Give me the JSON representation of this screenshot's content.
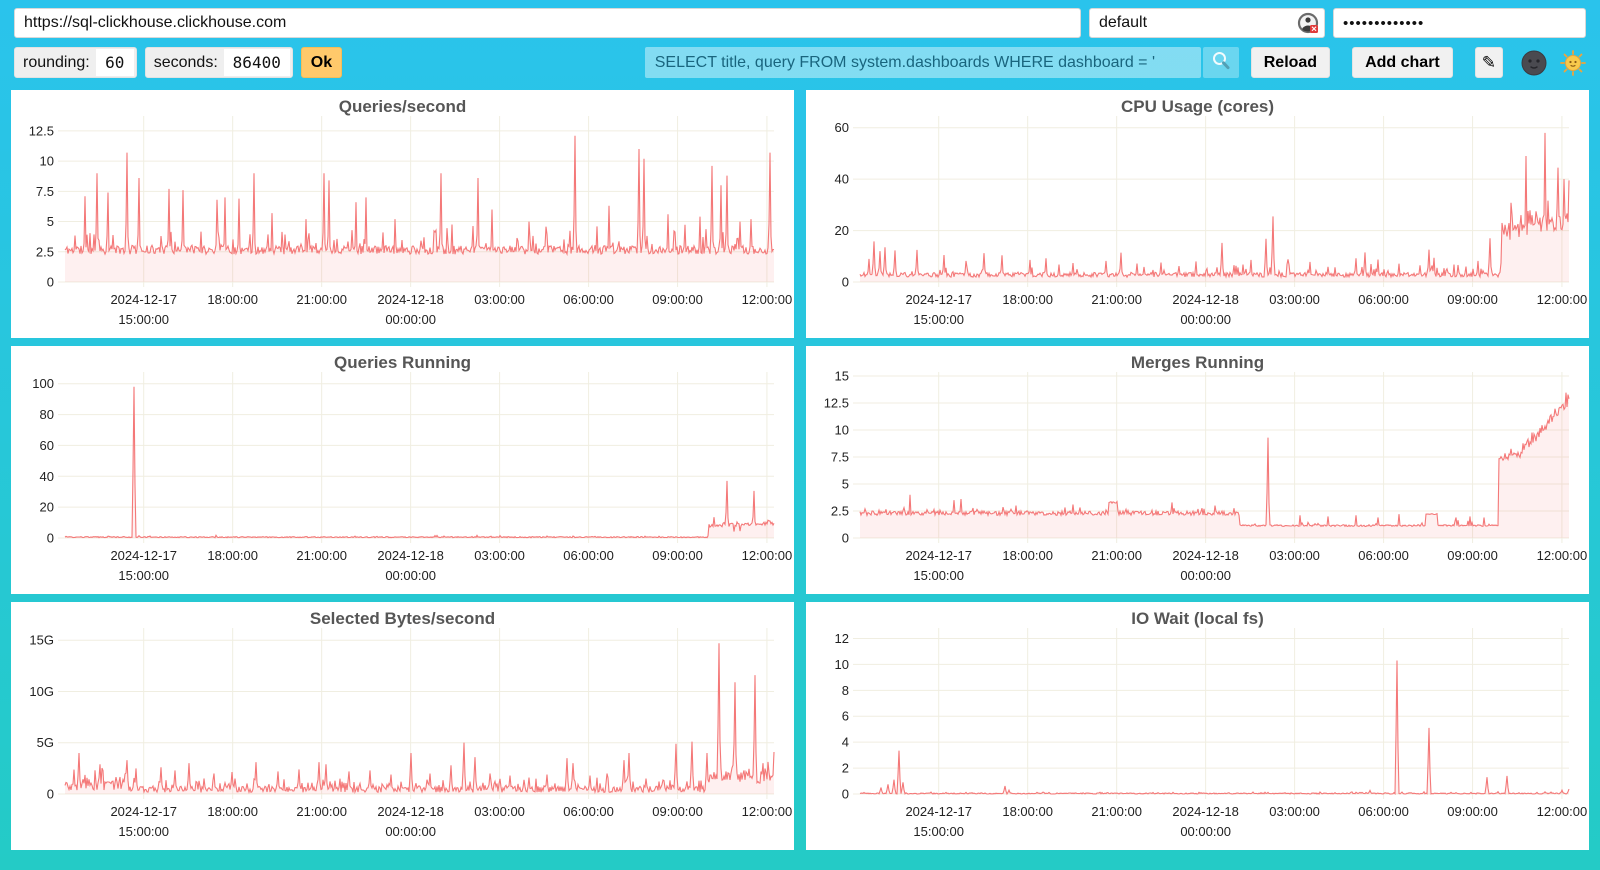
{
  "address_bar": {
    "url": "https://sql-clickhouse.clickhouse.com",
    "user": "default",
    "password_masked": "•••••••••••••"
  },
  "toolbar": {
    "rounding_label": "rounding:",
    "rounding_value": "60",
    "seconds_label": "seconds:",
    "seconds_value": "86400",
    "ok_label": "Ok",
    "query_value": "SELECT title, query FROM system.dashboards WHERE dashboard = '",
    "reload_label": "Reload",
    "add_chart_label": "Add chart",
    "edit_icon_glyph": "✎"
  },
  "theme": {
    "background_top": "#2AC3EC",
    "background_bottom": "#24CBC6",
    "line_color": "#F47878",
    "fill_color": "rgba(245,108,108,0.10)",
    "grid_color": "#F0EEE1",
    "panel_bg": "#FFFFFF",
    "title_color": "#565656",
    "tick_color": "#222222",
    "ok_button_color": "#FFC96B"
  },
  "xaxis": {
    "ticks": [
      {
        "pos": 0.111,
        "line1": "2024-12-17",
        "line2": "15:00:00"
      },
      {
        "pos": 0.2365,
        "line1": "18:00:00"
      },
      {
        "pos": 0.362,
        "line1": "21:00:00"
      },
      {
        "pos": 0.4875,
        "line1": "2024-12-18",
        "line2": "00:00:00"
      },
      {
        "pos": 0.613,
        "line1": "03:00:00"
      },
      {
        "pos": 0.7385,
        "line1": "06:00:00"
      },
      {
        "pos": 0.864,
        "line1": "09:00:00"
      },
      {
        "pos": 0.99,
        "line1": "12:00:00"
      }
    ]
  },
  "chart_data": [
    {
      "type": "area",
      "title": "Queries/second",
      "seed": 11,
      "ymax": 13.4,
      "yticks": [
        {
          "v": 0,
          "label": "0"
        },
        {
          "v": 2.5,
          "label": "2.5"
        },
        {
          "v": 5,
          "label": "5"
        },
        {
          "v": 7.5,
          "label": "7.5"
        },
        {
          "v": 10,
          "label": "10"
        },
        {
          "v": 12.5,
          "label": "12.5"
        }
      ],
      "segments": [
        {
          "from": 0,
          "to": 1,
          "base": 2.65,
          "noise": 0.35,
          "spike_prob": 0.13,
          "spike_amp": 1.9,
          "min": 1.9
        }
      ],
      "spikes": [
        [
          0.028,
          7.1
        ],
        [
          0.045,
          9.0
        ],
        [
          0.06,
          7.4
        ],
        [
          0.088,
          10.7
        ],
        [
          0.105,
          8.6
        ],
        [
          0.146,
          7.7
        ],
        [
          0.167,
          7.6
        ],
        [
          0.215,
          6.8
        ],
        [
          0.225,
          7.0
        ],
        [
          0.245,
          6.9
        ],
        [
          0.267,
          9.0
        ],
        [
          0.292,
          5.7
        ],
        [
          0.34,
          5.2
        ],
        [
          0.366,
          9.0
        ],
        [
          0.373,
          8.4
        ],
        [
          0.41,
          6.6
        ],
        [
          0.425,
          7.0
        ],
        [
          0.465,
          5.2
        ],
        [
          0.53,
          9.0
        ],
        [
          0.583,
          8.6
        ],
        [
          0.602,
          6.0
        ],
        [
          0.655,
          5.0
        ],
        [
          0.72,
          12.1
        ],
        [
          0.767,
          6.3
        ],
        [
          0.81,
          11.0
        ],
        [
          0.816,
          10.2
        ],
        [
          0.85,
          5.6
        ],
        [
          0.895,
          5.4
        ],
        [
          0.913,
          9.6
        ],
        [
          0.925,
          8.0
        ],
        [
          0.934,
          8.8
        ],
        [
          0.952,
          5.0
        ],
        [
          0.968,
          5.2
        ],
        [
          0.995,
          10.7
        ]
      ]
    },
    {
      "type": "area",
      "title": "CPU Usage (cores)",
      "seed": 22,
      "ymax": 63,
      "yticks": [
        {
          "v": 0,
          "label": "0"
        },
        {
          "v": 20,
          "label": "20"
        },
        {
          "v": 40,
          "label": "40"
        },
        {
          "v": 60,
          "label": "60"
        }
      ],
      "segments": [
        {
          "from": 0,
          "to": 0.905,
          "base": 2.8,
          "noise": 0.9,
          "spike_prob": 0.12,
          "spike_amp": 4.0,
          "min": 0.8
        },
        {
          "from": 0.905,
          "to": 1,
          "base": 19,
          "base_end": 24,
          "noise": 3.2,
          "spike_prob": 0.18,
          "spike_amp": 7,
          "min": 12
        }
      ],
      "spikes": [
        [
          0.012,
          9
        ],
        [
          0.02,
          15.8
        ],
        [
          0.028,
          12
        ],
        [
          0.035,
          13.5
        ],
        [
          0.05,
          12.3
        ],
        [
          0.08,
          12.5
        ],
        [
          0.118,
          10.5
        ],
        [
          0.15,
          8.2
        ],
        [
          0.175,
          11.2
        ],
        [
          0.2,
          10.4
        ],
        [
          0.24,
          8.6
        ],
        [
          0.262,
          9.2
        ],
        [
          0.3,
          7.4
        ],
        [
          0.347,
          8.2
        ],
        [
          0.368,
          11.4
        ],
        [
          0.39,
          7.2
        ],
        [
          0.424,
          7.6
        ],
        [
          0.45,
          6.2
        ],
        [
          0.474,
          8.0
        ],
        [
          0.51,
          15.2
        ],
        [
          0.53,
          6.3
        ],
        [
          0.551,
          8.6
        ],
        [
          0.572,
          16.8
        ],
        [
          0.582,
          25.5
        ],
        [
          0.604,
          8.8
        ],
        [
          0.634,
          7.8
        ],
        [
          0.66,
          5.9
        ],
        [
          0.7,
          9.2
        ],
        [
          0.712,
          11.5
        ],
        [
          0.73,
          8.7
        ],
        [
          0.76,
          7.1
        ],
        [
          0.79,
          6.5
        ],
        [
          0.802,
          12.6
        ],
        [
          0.81,
          9.4
        ],
        [
          0.843,
          6.6
        ],
        [
          0.872,
          8.2
        ],
        [
          0.888,
          17.0
        ],
        [
          0.918,
          30.8
        ],
        [
          0.932,
          26.0
        ],
        [
          0.94,
          49.0
        ],
        [
          0.953,
          27.5
        ],
        [
          0.966,
          58.0
        ],
        [
          0.975,
          23.5
        ],
        [
          0.984,
          44.5
        ],
        [
          0.993,
          40.0
        ],
        [
          1.0,
          39.5
        ]
      ]
    },
    {
      "type": "area",
      "title": "Queries Running",
      "seed": 33,
      "ymax": 105,
      "yticks": [
        {
          "v": 0,
          "label": "0"
        },
        {
          "v": 20,
          "label": "20"
        },
        {
          "v": 40,
          "label": "40"
        },
        {
          "v": 60,
          "label": "60"
        },
        {
          "v": 80,
          "label": "80"
        },
        {
          "v": 100,
          "label": "100"
        }
      ],
      "segments": [
        {
          "from": 0,
          "to": 0.908,
          "base": 0.55,
          "noise": 0.35,
          "spike_prob": 0.05,
          "spike_amp": 0.9,
          "min": 0.05
        },
        {
          "from": 0.908,
          "to": 1,
          "base": 8.0,
          "base_end": 9.5,
          "noise": 1.1,
          "spike_prob": 0.1,
          "spike_amp": 2.0,
          "min": 3.5
        }
      ],
      "spikes": [
        [
          0.097,
          98
        ],
        [
          0.915,
          13.5
        ],
        [
          0.928,
          9.5
        ],
        [
          0.934,
          37
        ],
        [
          0.944,
          4.2
        ],
        [
          0.952,
          4.5
        ],
        [
          0.962,
          9.0
        ],
        [
          0.972,
          30.5
        ],
        [
          0.98,
          8.8
        ],
        [
          0.995,
          11.0
        ],
        [
          1.0,
          9.5
        ]
      ]
    },
    {
      "type": "area",
      "title": "Merges Running",
      "seed": 44,
      "ymax": 15,
      "yticks": [
        {
          "v": 0,
          "label": "0"
        },
        {
          "v": 2.5,
          "label": "2.5"
        },
        {
          "v": 5,
          "label": "5"
        },
        {
          "v": 7.5,
          "label": "7.5"
        },
        {
          "v": 10,
          "label": "10"
        },
        {
          "v": 12.5,
          "label": "12.5"
        },
        {
          "v": 15,
          "label": "15"
        }
      ],
      "segments": [
        {
          "from": 0,
          "to": 0.35,
          "base": 2.3,
          "noise": 0.2,
          "spike_prob": 0.1,
          "spike_amp": 0.5,
          "min": 1.9
        },
        {
          "from": 0.35,
          "to": 0.363,
          "base": 3.3,
          "noise": 0.08,
          "spike_prob": 0,
          "spike_amp": 0,
          "min": 3.0
        },
        {
          "from": 0.363,
          "to": 0.535,
          "base": 2.3,
          "noise": 0.2,
          "spike_prob": 0.1,
          "spike_amp": 0.5,
          "min": 1.9
        },
        {
          "from": 0.535,
          "to": 0.798,
          "base": 1.15,
          "noise": 0.08,
          "spike_prob": 0.08,
          "spike_amp": 0.5,
          "min": 1.0
        },
        {
          "from": 0.798,
          "to": 0.815,
          "base": 2.22,
          "noise": 0.05,
          "spike_prob": 0,
          "spike_amp": 0,
          "min": 2.0
        },
        {
          "from": 0.815,
          "to": 0.9,
          "base": 1.15,
          "noise": 0.08,
          "spike_prob": 0.08,
          "spike_amp": 0.5,
          "min": 1.0
        },
        {
          "from": 0.9,
          "to": 0.935,
          "base": 7.6,
          "noise": 0.4,
          "spike_prob": 0.1,
          "spike_amp": 0.6,
          "min": 6.8
        },
        {
          "from": 0.935,
          "to": 1,
          "base": 8.2,
          "base_end": 12.6,
          "noise": 0.5,
          "spike_prob": 0.12,
          "spike_amp": 0.9,
          "min": 7.2
        }
      ],
      "spikes": [
        [
          0.07,
          4.0
        ],
        [
          0.133,
          3.5
        ],
        [
          0.142,
          3.6
        ],
        [
          0.22,
          3.0
        ],
        [
          0.3,
          3.1
        ],
        [
          0.44,
          3.3
        ],
        [
          0.5,
          3.0
        ],
        [
          0.575,
          9.3
        ],
        [
          0.62,
          2.1
        ],
        [
          0.66,
          2.0
        ],
        [
          0.7,
          2.1
        ],
        [
          0.73,
          1.9
        ],
        [
          0.76,
          2.2
        ],
        [
          0.84,
          1.9
        ],
        [
          0.86,
          2.0
        ],
        [
          0.88,
          1.9
        ],
        [
          0.955,
          9.6
        ],
        [
          0.975,
          11.4
        ],
        [
          0.99,
          12.3
        ],
        [
          1.0,
          12.9
        ]
      ]
    },
    {
      "type": "area",
      "title": "Selected Bytes/second",
      "seed": 55,
      "ymax": 15.8,
      "yticks": [
        {
          "v": 0,
          "label": "0"
        },
        {
          "v": 5,
          "label": "5G"
        },
        {
          "v": 10,
          "label": "10G"
        },
        {
          "v": 15,
          "label": "15G"
        }
      ],
      "segments": [
        {
          "from": 0,
          "to": 0.09,
          "base": 0.9,
          "noise": 0.55,
          "spike_prob": 0.3,
          "spike_amp": 1.3,
          "min": 0.1
        },
        {
          "from": 0.09,
          "to": 0.905,
          "base": 0.45,
          "noise": 0.3,
          "spike_prob": 0.22,
          "spike_amp": 1.0,
          "min": 0.05
        },
        {
          "from": 0.905,
          "to": 1,
          "base": 1.6,
          "noise": 0.6,
          "spike_prob": 0.25,
          "spike_amp": 1.2,
          "min": 0.9
        }
      ],
      "spikes": [
        [
          0.02,
          4.0
        ],
        [
          0.05,
          2.9
        ],
        [
          0.088,
          3.3
        ],
        [
          0.1,
          2.5
        ],
        [
          0.135,
          2.6
        ],
        [
          0.155,
          2.3
        ],
        [
          0.175,
          3.0
        ],
        [
          0.21,
          2.0
        ],
        [
          0.235,
          2.15
        ],
        [
          0.27,
          3.1
        ],
        [
          0.3,
          2.2
        ],
        [
          0.33,
          2.4
        ],
        [
          0.358,
          3.1
        ],
        [
          0.368,
          2.9
        ],
        [
          0.4,
          2.2
        ],
        [
          0.43,
          2.3
        ],
        [
          0.46,
          1.9
        ],
        [
          0.488,
          4.0
        ],
        [
          0.515,
          2.0
        ],
        [
          0.545,
          2.8
        ],
        [
          0.563,
          5.0
        ],
        [
          0.578,
          3.6
        ],
        [
          0.6,
          2.0
        ],
        [
          0.628,
          1.8
        ],
        [
          0.655,
          1.6
        ],
        [
          0.68,
          1.9
        ],
        [
          0.708,
          3.5
        ],
        [
          0.716,
          3.0
        ],
        [
          0.74,
          1.8
        ],
        [
          0.765,
          2.0
        ],
        [
          0.788,
          3.3
        ],
        [
          0.795,
          4.0
        ],
        [
          0.82,
          1.5
        ],
        [
          0.845,
          1.3
        ],
        [
          0.862,
          4.9
        ],
        [
          0.884,
          5.1
        ],
        [
          0.905,
          4.0
        ],
        [
          0.922,
          14.7
        ],
        [
          0.945,
          10.9
        ],
        [
          0.957,
          2.3
        ],
        [
          0.973,
          11.6
        ],
        [
          0.985,
          3.0
        ],
        [
          1.0,
          4.1
        ]
      ]
    },
    {
      "type": "area",
      "title": "IO Wait (local fs)",
      "seed": 66,
      "ymax": 12.5,
      "yticks": [
        {
          "v": 0,
          "label": "0"
        },
        {
          "v": 2,
          "label": "2"
        },
        {
          "v": 4,
          "label": "4"
        },
        {
          "v": 6,
          "label": "6"
        },
        {
          "v": 8,
          "label": "8"
        },
        {
          "v": 10,
          "label": "10"
        },
        {
          "v": 12,
          "label": "12"
        }
      ],
      "segments": [
        {
          "from": 0,
          "to": 1,
          "base": 0.04,
          "noise": 0.04,
          "spike_prob": 0.05,
          "spike_amp": 0.12,
          "min": 0.0
        }
      ],
      "spikes": [
        [
          0.03,
          0.5
        ],
        [
          0.04,
          0.75
        ],
        [
          0.048,
          1.1
        ],
        [
          0.055,
          3.35
        ],
        [
          0.06,
          0.9
        ],
        [
          0.1,
          0.15
        ],
        [
          0.15,
          0.12
        ],
        [
          0.205,
          0.62
        ],
        [
          0.21,
          0.3
        ],
        [
          0.25,
          0.12
        ],
        [
          0.3,
          0.08
        ],
        [
          0.35,
          0.1
        ],
        [
          0.42,
          0.1
        ],
        [
          0.47,
          0.08
        ],
        [
          0.52,
          0.1
        ],
        [
          0.555,
          0.15
        ],
        [
          0.575,
          0.12
        ],
        [
          0.6,
          0.1
        ],
        [
          0.64,
          0.08
        ],
        [
          0.67,
          0.1
        ],
        [
          0.705,
          0.12
        ],
        [
          0.72,
          0.28
        ],
        [
          0.74,
          0.1
        ],
        [
          0.758,
          10.3
        ],
        [
          0.775,
          0.1
        ],
        [
          0.803,
          5.1
        ],
        [
          0.82,
          0.08
        ],
        [
          0.84,
          0.1
        ],
        [
          0.862,
          0.12
        ],
        [
          0.885,
          1.3
        ],
        [
          0.9,
          0.18
        ],
        [
          0.912,
          1.4
        ],
        [
          0.93,
          0.1
        ],
        [
          0.955,
          0.12
        ],
        [
          0.975,
          0.15
        ],
        [
          0.99,
          0.3
        ],
        [
          1.0,
          0.38
        ]
      ]
    }
  ]
}
